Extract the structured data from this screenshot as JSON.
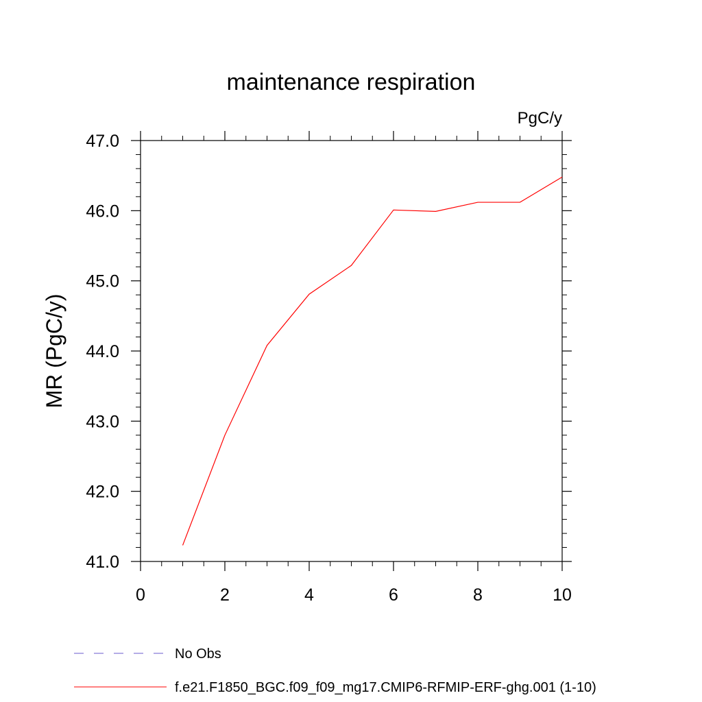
{
  "chart_data": {
    "type": "line",
    "title": "maintenance respiration",
    "units": "PgC/y",
    "xlabel": "",
    "ylabel": "MR  (PgC/y)",
    "xlim": [
      0,
      10
    ],
    "ylim": [
      41.0,
      47.0
    ],
    "x_ticks": [
      0,
      2,
      4,
      6,
      8,
      10
    ],
    "x_tick_labels": [
      "0",
      "2",
      "4",
      "6",
      "8",
      "10"
    ],
    "y_ticks": [
      41.0,
      42.0,
      43.0,
      44.0,
      45.0,
      46.0,
      47.0
    ],
    "y_tick_labels": [
      "41.0",
      "42.0",
      "43.0",
      "44.0",
      "45.0",
      "46.0",
      "47.0"
    ],
    "grid": false,
    "legend_position": "bottom",
    "series": [
      {
        "name": "f.e21.F1850_BGC.f09_f09_mg17.CMIP6-RFMIP-ERF-ghg.001 (1-10)",
        "color": "#ff0000",
        "dash": "solid",
        "x": [
          1,
          2,
          3,
          4,
          5,
          6,
          7,
          8,
          9,
          10
        ],
        "y": [
          41.23,
          42.8,
          44.08,
          44.81,
          45.22,
          46.01,
          45.99,
          46.12,
          46.12,
          46.48
        ]
      }
    ],
    "legend": [
      {
        "label": "No Obs",
        "color": "#6a5acd",
        "dash": "dashed"
      },
      {
        "label": "f.e21.F1850_BGC.f09_f09_mg17.CMIP6-RFMIP-ERF-ghg.001 (1-10)",
        "color": "#ff0000",
        "dash": "solid"
      }
    ]
  }
}
